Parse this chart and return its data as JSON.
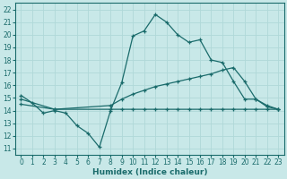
{
  "bg_color": "#c8e8e8",
  "grid_color": "#b0d8d8",
  "line_color": "#1a6b6b",
  "xlabel": "Humidex (Indice chaleur)",
  "xlim": [
    -0.5,
    23.5
  ],
  "ylim": [
    10.5,
    22.5
  ],
  "xticks": [
    0,
    1,
    2,
    3,
    4,
    5,
    6,
    7,
    8,
    9,
    10,
    11,
    12,
    13,
    14,
    15,
    16,
    17,
    18,
    19,
    20,
    21,
    22,
    23
  ],
  "yticks": [
    11,
    12,
    13,
    14,
    15,
    16,
    17,
    18,
    19,
    20,
    21,
    22
  ],
  "line1_x": [
    0,
    1,
    2,
    3,
    4,
    5,
    6,
    7,
    8,
    9,
    10,
    11,
    12,
    13,
    14,
    15,
    16,
    17,
    18,
    19,
    20,
    21,
    22,
    23
  ],
  "line1_y": [
    15.2,
    14.6,
    13.8,
    14.0,
    13.8,
    12.8,
    12.2,
    11.1,
    14.0,
    16.2,
    19.9,
    20.3,
    21.6,
    21.0,
    20.0,
    19.4,
    19.6,
    18.0,
    17.8,
    16.3,
    14.9,
    14.9,
    14.3,
    14.1
  ],
  "line2_x": [
    0,
    3,
    8,
    9,
    10,
    11,
    12,
    13,
    14,
    15,
    16,
    17,
    18,
    19,
    20,
    21,
    22,
    23
  ],
  "line2_y": [
    14.9,
    14.1,
    14.4,
    14.9,
    15.3,
    15.6,
    15.9,
    16.1,
    16.3,
    16.5,
    16.7,
    16.9,
    17.2,
    17.4,
    16.3,
    14.9,
    14.4,
    14.1
  ],
  "line3_x": [
    0,
    3,
    8,
    9,
    10,
    11,
    12,
    13,
    14,
    15,
    16,
    17,
    18,
    19,
    20,
    21,
    22,
    23
  ],
  "line3_y": [
    14.5,
    14.1,
    14.1,
    14.1,
    14.1,
    14.1,
    14.1,
    14.1,
    14.1,
    14.1,
    14.1,
    14.1,
    14.1,
    14.1,
    14.1,
    14.1,
    14.1,
    14.1
  ],
  "tick_fontsize": 5.5,
  "xlabel_fontsize": 6.5
}
